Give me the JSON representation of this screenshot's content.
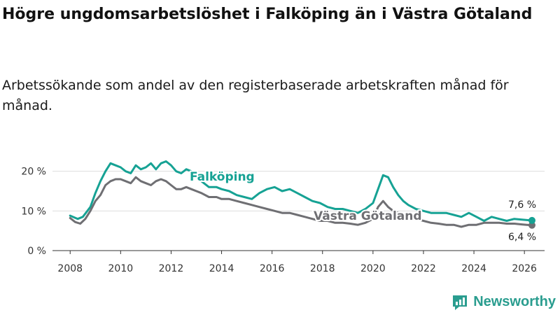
{
  "title": "Högre ungdomsarbetslöshet i Falköping än i Västra Götaland",
  "subtitle": "Arbetssökande som andel av den registerbaserade arbetskraften månad för månad.",
  "brand": {
    "name": "Newsworthy"
  },
  "colors": {
    "falkoping": "#16a294",
    "vastra": "#6f6f73",
    "grid": "#dddddd",
    "text": "#333333"
  },
  "chart_data": {
    "type": "line",
    "title": "Högre ungdomsarbetslöshet i Falköping än i Västra Götaland",
    "xlabel": "",
    "ylabel": "",
    "xlim": [
      2007.3,
      2026.8
    ],
    "ylim": [
      0,
      24
    ],
    "x_ticks": [
      2008,
      2010,
      2012,
      2014,
      2016,
      2018,
      2020,
      2022,
      2024,
      2026
    ],
    "x_tick_labels": [
      "2008",
      "2010",
      "2012",
      "2014",
      "2016",
      "2018",
      "2020",
      "2022",
      "2024",
      "2026"
    ],
    "y_ticks": [
      0,
      10,
      20
    ],
    "y_tick_labels": [
      "0 %",
      "10 %",
      "20 %"
    ],
    "grid": true,
    "series": [
      {
        "name": "Falköping",
        "x": [
          2008.0,
          2008.3,
          2008.5,
          2008.8,
          2009.0,
          2009.2,
          2009.4,
          2009.6,
          2009.8,
          2010.0,
          2010.2,
          2010.4,
          2010.6,
          2010.8,
          2011.0,
          2011.2,
          2011.4,
          2011.6,
          2011.8,
          2012.0,
          2012.2,
          2012.4,
          2012.6,
          2012.8,
          2013.0,
          2013.2,
          2013.5,
          2013.8,
          2014.0,
          2014.3,
          2014.6,
          2014.9,
          2015.2,
          2015.5,
          2015.8,
          2016.1,
          2016.4,
          2016.7,
          2017.0,
          2017.3,
          2017.6,
          2017.9,
          2018.2,
          2018.5,
          2018.8,
          2019.1,
          2019.4,
          2019.7,
          2020.0,
          2020.2,
          2020.4,
          2020.6,
          2020.8,
          2021.0,
          2021.2,
          2021.4,
          2021.7,
          2022.0,
          2022.3,
          2022.6,
          2022.9,
          2023.2,
          2023.5,
          2023.8,
          2024.1,
          2024.4,
          2024.7,
          2025.0,
          2025.3,
          2025.6,
          2025.9,
          2026.1,
          2026.3
        ],
        "values": [
          8.8,
          8.0,
          8.5,
          11.0,
          14.5,
          17.5,
          20.0,
          22.0,
          21.5,
          21.0,
          20.0,
          19.5,
          21.5,
          20.5,
          21.0,
          22.0,
          20.5,
          22.0,
          22.5,
          21.5,
          20.0,
          19.5,
          20.5,
          20.0,
          18.5,
          17.5,
          16.0,
          16.0,
          15.5,
          15.0,
          14.0,
          13.5,
          13.0,
          14.5,
          15.5,
          16.0,
          15.0,
          15.5,
          14.5,
          13.5,
          12.5,
          12.0,
          11.0,
          10.5,
          10.5,
          10.0,
          9.5,
          10.5,
          12.0,
          15.5,
          19.0,
          18.5,
          16.0,
          14.0,
          12.5,
          11.5,
          10.5,
          10.0,
          9.5,
          9.5,
          9.5,
          9.0,
          8.5,
          9.5,
          8.5,
          7.5,
          8.5,
          8.0,
          7.5,
          8.0,
          7.8,
          7.7,
          7.6
        ]
      },
      {
        "name": "Västra Götaland",
        "x": [
          2008.0,
          2008.2,
          2008.4,
          2008.6,
          2008.8,
          2009.0,
          2009.2,
          2009.4,
          2009.6,
          2009.8,
          2010.0,
          2010.2,
          2010.4,
          2010.6,
          2010.8,
          2011.0,
          2011.2,
          2011.4,
          2011.6,
          2011.8,
          2012.0,
          2012.2,
          2012.4,
          2012.6,
          2012.8,
          2013.0,
          2013.2,
          2013.5,
          2013.8,
          2014.0,
          2014.3,
          2014.6,
          2014.9,
          2015.2,
          2015.5,
          2015.8,
          2016.1,
          2016.4,
          2016.7,
          2017.0,
          2017.3,
          2017.6,
          2017.9,
          2018.2,
          2018.5,
          2018.8,
          2019.1,
          2019.4,
          2019.7,
          2020.0,
          2020.2,
          2020.4,
          2020.6,
          2020.8,
          2021.0,
          2021.2,
          2021.4,
          2021.7,
          2022.0,
          2022.3,
          2022.6,
          2022.9,
          2023.2,
          2023.5,
          2023.8,
          2024.1,
          2024.4,
          2024.7,
          2025.0,
          2025.3,
          2025.6,
          2025.9,
          2026.1,
          2026.3
        ],
        "values": [
          8.2,
          7.2,
          6.8,
          8.0,
          10.0,
          12.5,
          14.0,
          16.5,
          17.5,
          18.0,
          18.0,
          17.5,
          17.0,
          18.5,
          17.5,
          17.0,
          16.5,
          17.5,
          18.0,
          17.5,
          16.5,
          15.5,
          15.5,
          16.0,
          15.5,
          15.0,
          14.5,
          13.5,
          13.5,
          13.0,
          13.0,
          12.5,
          12.0,
          11.5,
          11.0,
          10.5,
          10.0,
          9.5,
          9.5,
          9.0,
          8.5,
          8.0,
          7.5,
          7.5,
          7.0,
          7.0,
          6.8,
          6.5,
          7.0,
          8.0,
          11.0,
          12.5,
          11.0,
          10.0,
          9.5,
          9.0,
          8.5,
          8.0,
          7.5,
          7.0,
          6.8,
          6.5,
          6.5,
          6.0,
          6.5,
          6.5,
          7.0,
          7.0,
          7.0,
          6.8,
          6.8,
          6.6,
          6.5,
          6.4
        ]
      }
    ],
    "annotations": {
      "falkoping_label": "Falköping",
      "vastra_label": "Västra Götaland",
      "falkoping_end": "7,6 %",
      "vastra_end": "6,4 %"
    }
  }
}
